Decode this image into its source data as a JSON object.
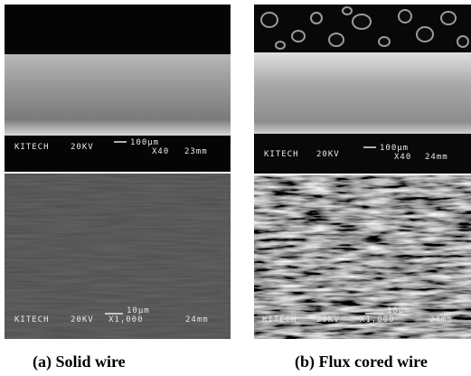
{
  "panels": [
    {
      "caption": "(a) Solid wire",
      "images": [
        {
          "label": "KITECH",
          "voltage": "20KV",
          "scale": "100µm",
          "magnification": "X40",
          "distance": "23mm"
        },
        {
          "label": "KITECH",
          "voltage": "20KV",
          "scale": "10µm",
          "magnification": "X1,000",
          "distance": "24mm"
        }
      ]
    },
    {
      "caption": "(b) Flux cored wire",
      "images": [
        {
          "label": "KITECH",
          "voltage": "20KV",
          "scale": "100µm",
          "magnification": "X40",
          "distance": "24mm"
        },
        {
          "label": "KITECH",
          "voltage": "20KV",
          "scale": "10µm",
          "magnification": "X1,000",
          "distance": "24mm"
        }
      ]
    }
  ]
}
